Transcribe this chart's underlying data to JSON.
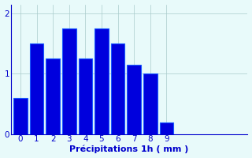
{
  "categories": [
    0,
    1,
    2,
    3,
    4,
    5,
    6,
    7,
    8,
    9
  ],
  "values": [
    0.6,
    1.5,
    1.25,
    1.75,
    1.25,
    1.75,
    1.5,
    1.15,
    1.0,
    0.2
  ],
  "bar_color": "#0000dd",
  "bar_edge_color": "#1a5aff",
  "background_color": "#e8fafa",
  "grid_color": "#aacccc",
  "xlabel": "Précipitations 1h ( mm )",
  "xlabel_color": "#0000cc",
  "tick_color": "#0000cc",
  "ylim": [
    0,
    2.15
  ],
  "xlim": [
    -0.6,
    14
  ],
  "yticks": [
    0,
    1,
    2
  ],
  "xticks": [
    0,
    1,
    2,
    3,
    4,
    5,
    6,
    7,
    8,
    9
  ],
  "bar_width": 0.85,
  "xlabel_fontsize": 8,
  "tick_fontsize": 7.5
}
